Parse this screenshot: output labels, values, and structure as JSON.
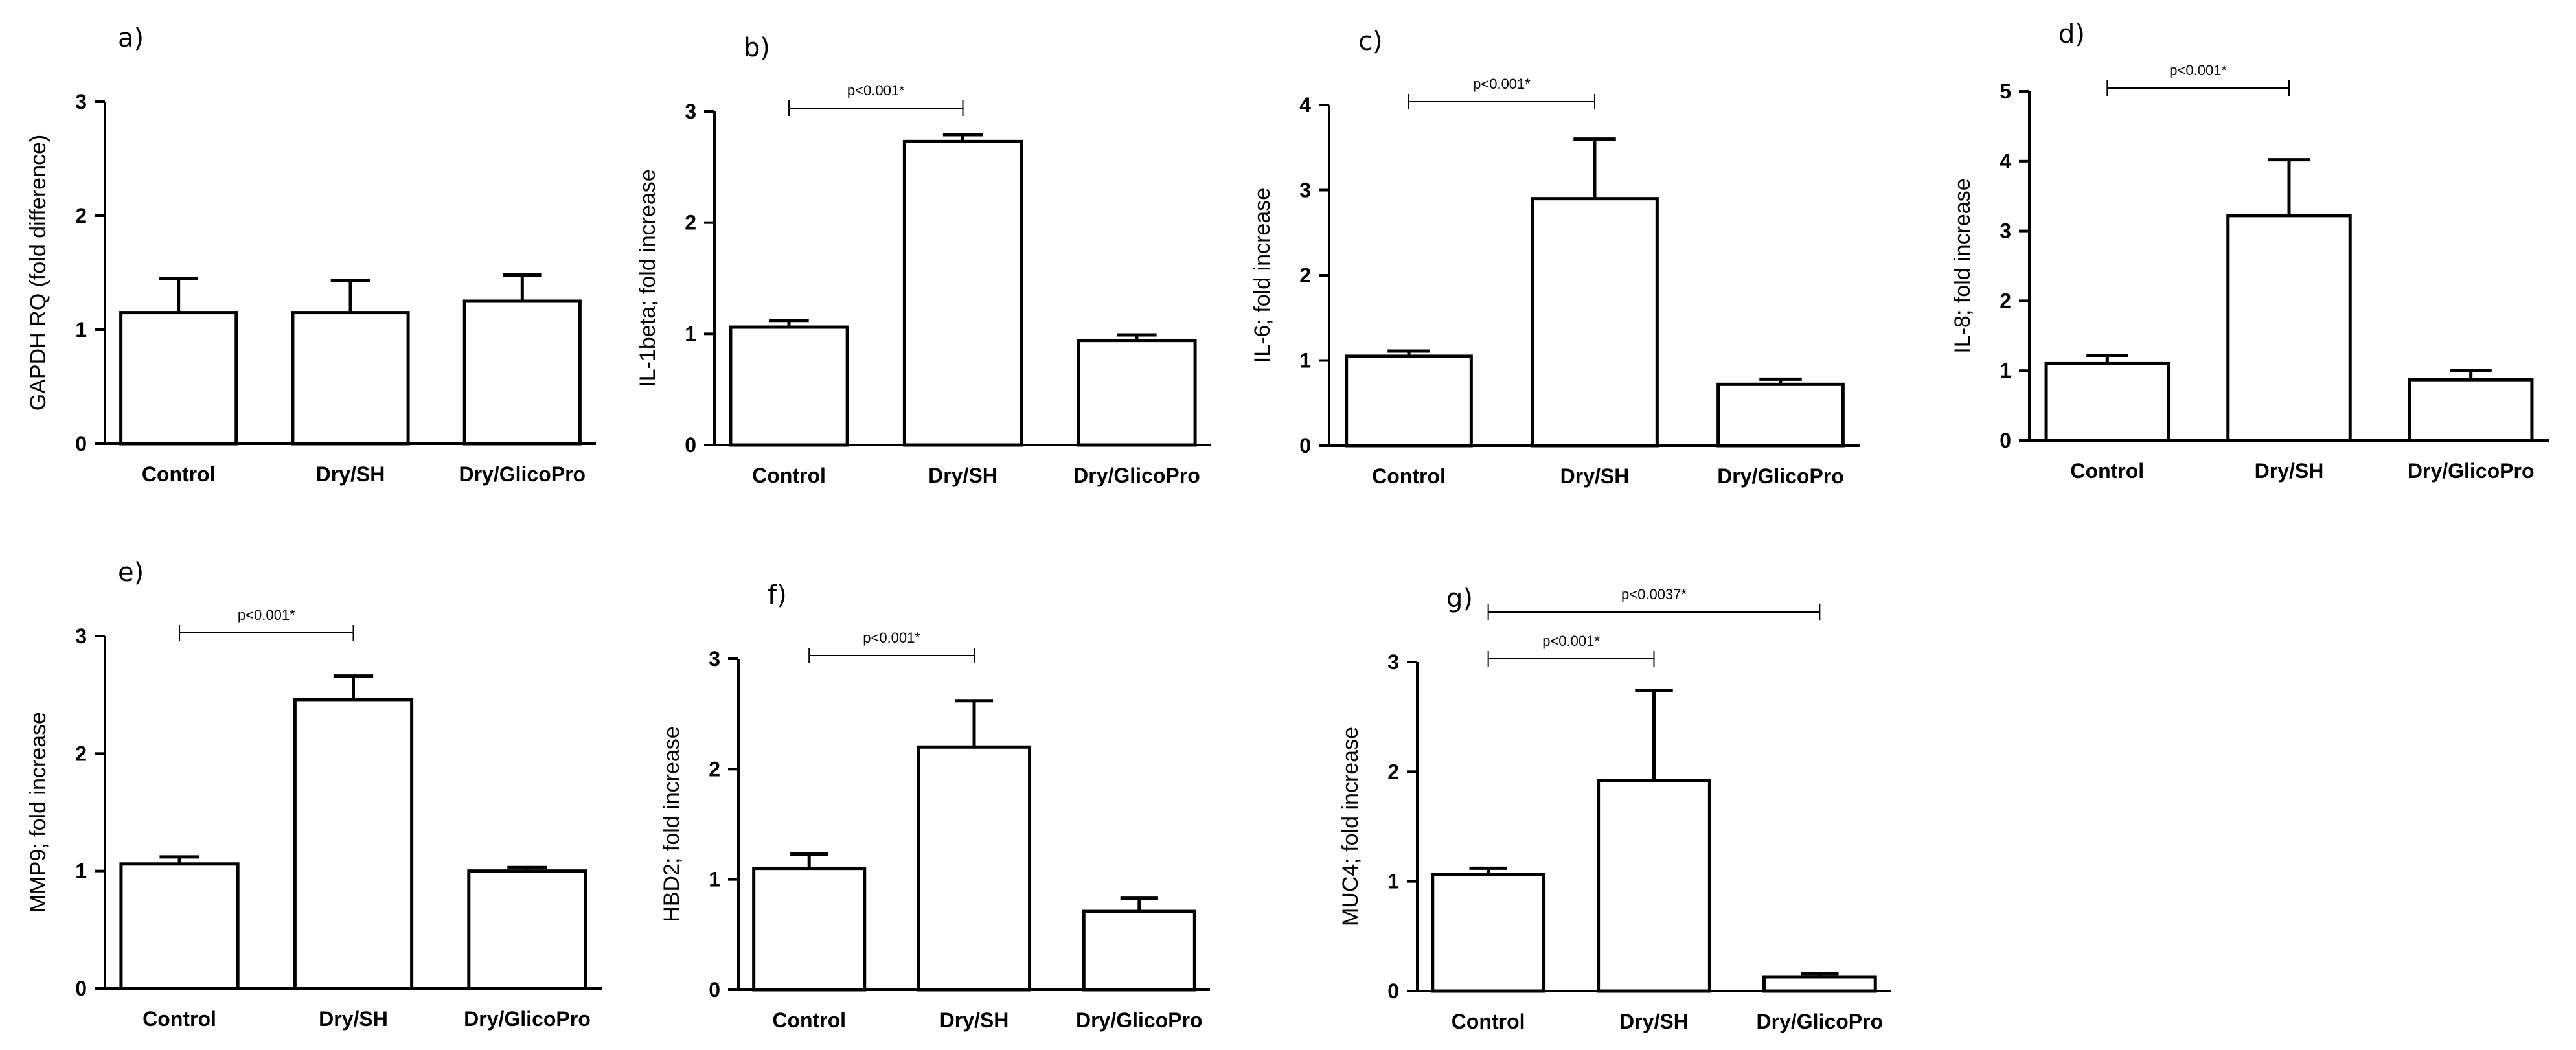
{
  "chart_data": [
    {
      "type": "bar",
      "panel": "a)",
      "categories": [
        "Control",
        "Dry/SH",
        "Dry/GlicoPro"
      ],
      "values": [
        1.15,
        1.15,
        1.25
      ],
      "errors": [
        0.3,
        0.28,
        0.23
      ],
      "ylabel": "GAPDH RQ (fold difference)",
      "ylim": [
        0,
        3
      ],
      "yticks": [
        "0",
        "1",
        "2",
        "3"
      ],
      "significance": []
    },
    {
      "type": "bar",
      "panel": "b)",
      "categories": [
        "Control",
        "Dry/SH",
        "Dry/GlicoPro"
      ],
      "values": [
        1.06,
        2.73,
        0.94
      ],
      "errors": [
        0.06,
        0.06,
        0.05
      ],
      "ylabel": "IL-1beta; fold increase",
      "ylim": [
        0,
        3
      ],
      "yticks": [
        "0",
        "1",
        "2",
        "3"
      ],
      "significance": [
        {
          "from": 0,
          "to": 1,
          "label": "p<0.001*"
        }
      ]
    },
    {
      "type": "bar",
      "panel": "c)",
      "categories": [
        "Control",
        "Dry/SH",
        "Dry/GlicoPro"
      ],
      "values": [
        1.05,
        2.9,
        0.72
      ],
      "errors": [
        0.06,
        0.7,
        0.06
      ],
      "ylabel": "IL-6; fold increase",
      "ylim": [
        0,
        4
      ],
      "yticks": [
        "0",
        "1",
        "2",
        "3",
        "4"
      ],
      "significance": [
        {
          "from": 0,
          "to": 1,
          "label": "p<0.001*"
        }
      ]
    },
    {
      "type": "bar",
      "panel": "d)",
      "categories": [
        "Control",
        "Dry/SH",
        "Dry/GlicoPro"
      ],
      "values": [
        1.1,
        3.22,
        0.87
      ],
      "errors": [
        0.12,
        0.8,
        0.13
      ],
      "ylabel": "IL-8; fold increase",
      "ylim": [
        0,
        5
      ],
      "yticks": [
        "0",
        "1",
        "2",
        "3",
        "4",
        "5"
      ],
      "significance": [
        {
          "from": 0,
          "to": 1,
          "label": "p<0.001*"
        }
      ]
    },
    {
      "type": "bar",
      "panel": "e)",
      "categories": [
        "Control",
        "Dry/SH",
        "Dry/GlicoPro"
      ],
      "values": [
        1.06,
        2.46,
        1.0
      ],
      "errors": [
        0.06,
        0.2,
        0.03
      ],
      "ylabel": "MMP9; fold increase",
      "ylim": [
        0,
        3
      ],
      "yticks": [
        "0",
        "1",
        "2",
        "3"
      ],
      "significance": [
        {
          "from": 0,
          "to": 1,
          "label": "p<0.001*"
        }
      ]
    },
    {
      "type": "bar",
      "panel": "f)",
      "categories": [
        "Control",
        "Dry/SH",
        "Dry/GlicoPro"
      ],
      "values": [
        1.1,
        2.2,
        0.71
      ],
      "errors": [
        0.13,
        0.42,
        0.12
      ],
      "ylabel": "HBD2; fold increase",
      "ylim": [
        0,
        3
      ],
      "yticks": [
        "0",
        "1",
        "2",
        "3"
      ],
      "significance": [
        {
          "from": 0,
          "to": 1,
          "label": "p<0.001*"
        }
      ]
    },
    {
      "type": "bar",
      "panel": "g)",
      "categories": [
        "Control",
        "Dry/SH",
        "Dry/GlicoPro"
      ],
      "values": [
        1.06,
        1.92,
        0.13
      ],
      "errors": [
        0.06,
        0.82,
        0.03
      ],
      "ylabel": "MUC4; fold increase",
      "ylim": [
        0,
        3
      ],
      "yticks": [
        "0",
        "1",
        "2",
        "3"
      ],
      "significance": [
        {
          "from": 0,
          "to": 1,
          "label": "p<0.001*"
        },
        {
          "from": 0,
          "to": 2,
          "label": "p<0.0037*"
        }
      ]
    }
  ]
}
